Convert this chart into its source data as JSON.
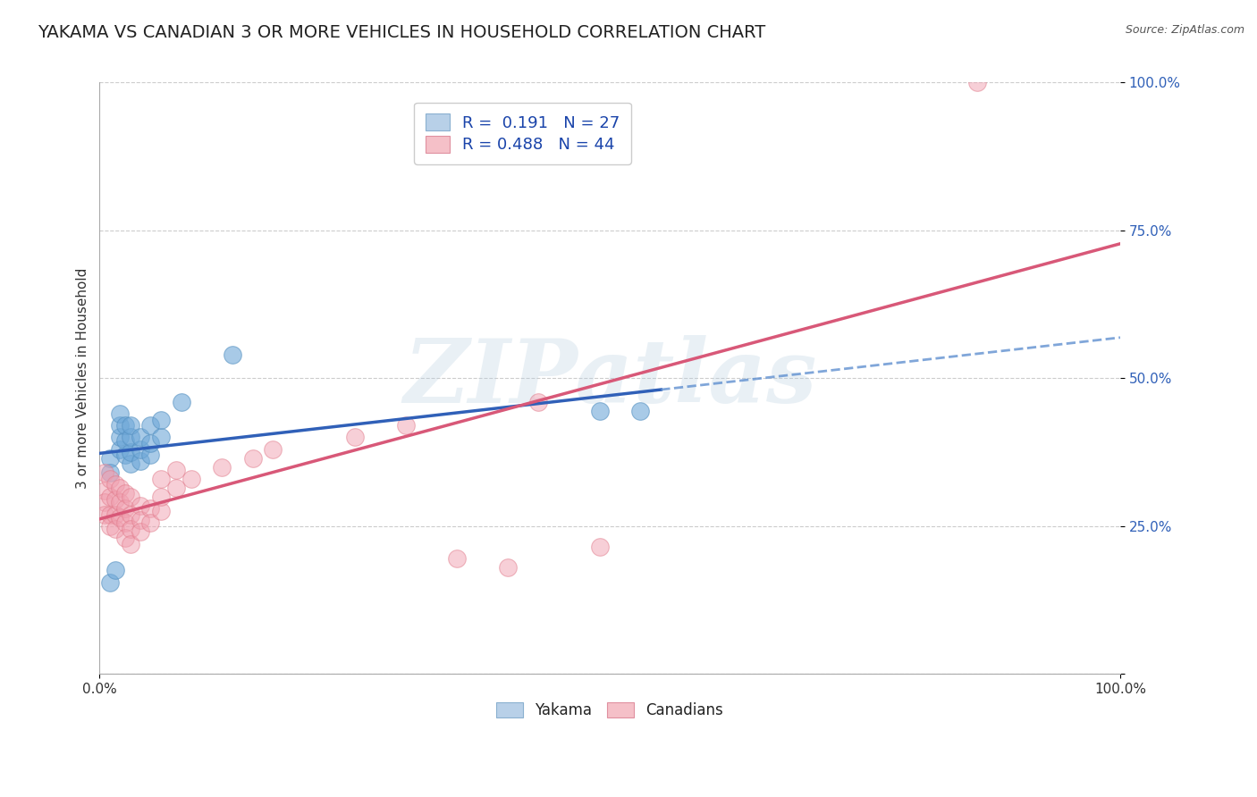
{
  "title": "YAKAMA VS CANADIAN 3 OR MORE VEHICLES IN HOUSEHOLD CORRELATION CHART",
  "source": "Source: ZipAtlas.com",
  "ylabel": "3 or more Vehicles in Household",
  "xlim": [
    0.0,
    1.0
  ],
  "ylim": [
    0.0,
    1.0
  ],
  "ytick_labels": [
    "",
    "25.0%",
    "50.0%",
    "75.0%",
    "100.0%"
  ],
  "ytick_positions": [
    0.0,
    0.25,
    0.5,
    0.75,
    1.0
  ],
  "watermark": "ZIPatlas",
  "legend_r_entries": [
    {
      "label": "R =  0.191   N = 27",
      "facecolor": "#b8d0e8",
      "edgecolor": "#8ab0d0"
    },
    {
      "label": "R = 0.488   N = 44",
      "facecolor": "#f5c0c8",
      "edgecolor": "#e090a0"
    }
  ],
  "blue_scatter_color": "#6fa8d8",
  "blue_scatter_edge": "#5590c0",
  "pink_scatter_color": "#f0a0b0",
  "pink_scatter_edge": "#e07888",
  "blue_line_color": "#3060b8",
  "pink_line_color": "#d85878",
  "blue_dash_color": "#6090d0",
  "yakama_points": [
    [
      0.01,
      0.365
    ],
    [
      0.01,
      0.34
    ],
    [
      0.02,
      0.38
    ],
    [
      0.02,
      0.4
    ],
    [
      0.02,
      0.42
    ],
    [
      0.02,
      0.44
    ],
    [
      0.025,
      0.37
    ],
    [
      0.025,
      0.395
    ],
    [
      0.025,
      0.42
    ],
    [
      0.03,
      0.355
    ],
    [
      0.03,
      0.375
    ],
    [
      0.03,
      0.4
    ],
    [
      0.03,
      0.42
    ],
    [
      0.04,
      0.36
    ],
    [
      0.04,
      0.38
    ],
    [
      0.04,
      0.4
    ],
    [
      0.05,
      0.37
    ],
    [
      0.05,
      0.39
    ],
    [
      0.05,
      0.42
    ],
    [
      0.06,
      0.4
    ],
    [
      0.06,
      0.43
    ],
    [
      0.08,
      0.46
    ],
    [
      0.13,
      0.54
    ],
    [
      0.01,
      0.155
    ],
    [
      0.015,
      0.175
    ],
    [
      0.49,
      0.445
    ],
    [
      0.53,
      0.445
    ]
  ],
  "canadian_points": [
    [
      0.005,
      0.34
    ],
    [
      0.005,
      0.31
    ],
    [
      0.005,
      0.29
    ],
    [
      0.005,
      0.27
    ],
    [
      0.01,
      0.33
    ],
    [
      0.01,
      0.3
    ],
    [
      0.01,
      0.27
    ],
    [
      0.01,
      0.25
    ],
    [
      0.015,
      0.32
    ],
    [
      0.015,
      0.295
    ],
    [
      0.015,
      0.27
    ],
    [
      0.015,
      0.245
    ],
    [
      0.02,
      0.315
    ],
    [
      0.02,
      0.29
    ],
    [
      0.02,
      0.265
    ],
    [
      0.025,
      0.305
    ],
    [
      0.025,
      0.28
    ],
    [
      0.025,
      0.255
    ],
    [
      0.025,
      0.23
    ],
    [
      0.03,
      0.3
    ],
    [
      0.03,
      0.27
    ],
    [
      0.03,
      0.245
    ],
    [
      0.03,
      0.22
    ],
    [
      0.04,
      0.285
    ],
    [
      0.04,
      0.26
    ],
    [
      0.04,
      0.24
    ],
    [
      0.05,
      0.28
    ],
    [
      0.05,
      0.255
    ],
    [
      0.06,
      0.275
    ],
    [
      0.06,
      0.3
    ],
    [
      0.06,
      0.33
    ],
    [
      0.075,
      0.315
    ],
    [
      0.075,
      0.345
    ],
    [
      0.09,
      0.33
    ],
    [
      0.12,
      0.35
    ],
    [
      0.15,
      0.365
    ],
    [
      0.17,
      0.38
    ],
    [
      0.25,
      0.4
    ],
    [
      0.3,
      0.42
    ],
    [
      0.35,
      0.195
    ],
    [
      0.4,
      0.18
    ],
    [
      0.43,
      0.46
    ],
    [
      0.49,
      0.215
    ],
    [
      0.86,
      1.0
    ]
  ],
  "background_color": "#ffffff",
  "grid_color": "#cccccc",
  "title_fontsize": 14,
  "axis_fontsize": 11,
  "tick_fontsize": 11,
  "ytick_color": "#3060b8",
  "xtick_color": "#333333"
}
